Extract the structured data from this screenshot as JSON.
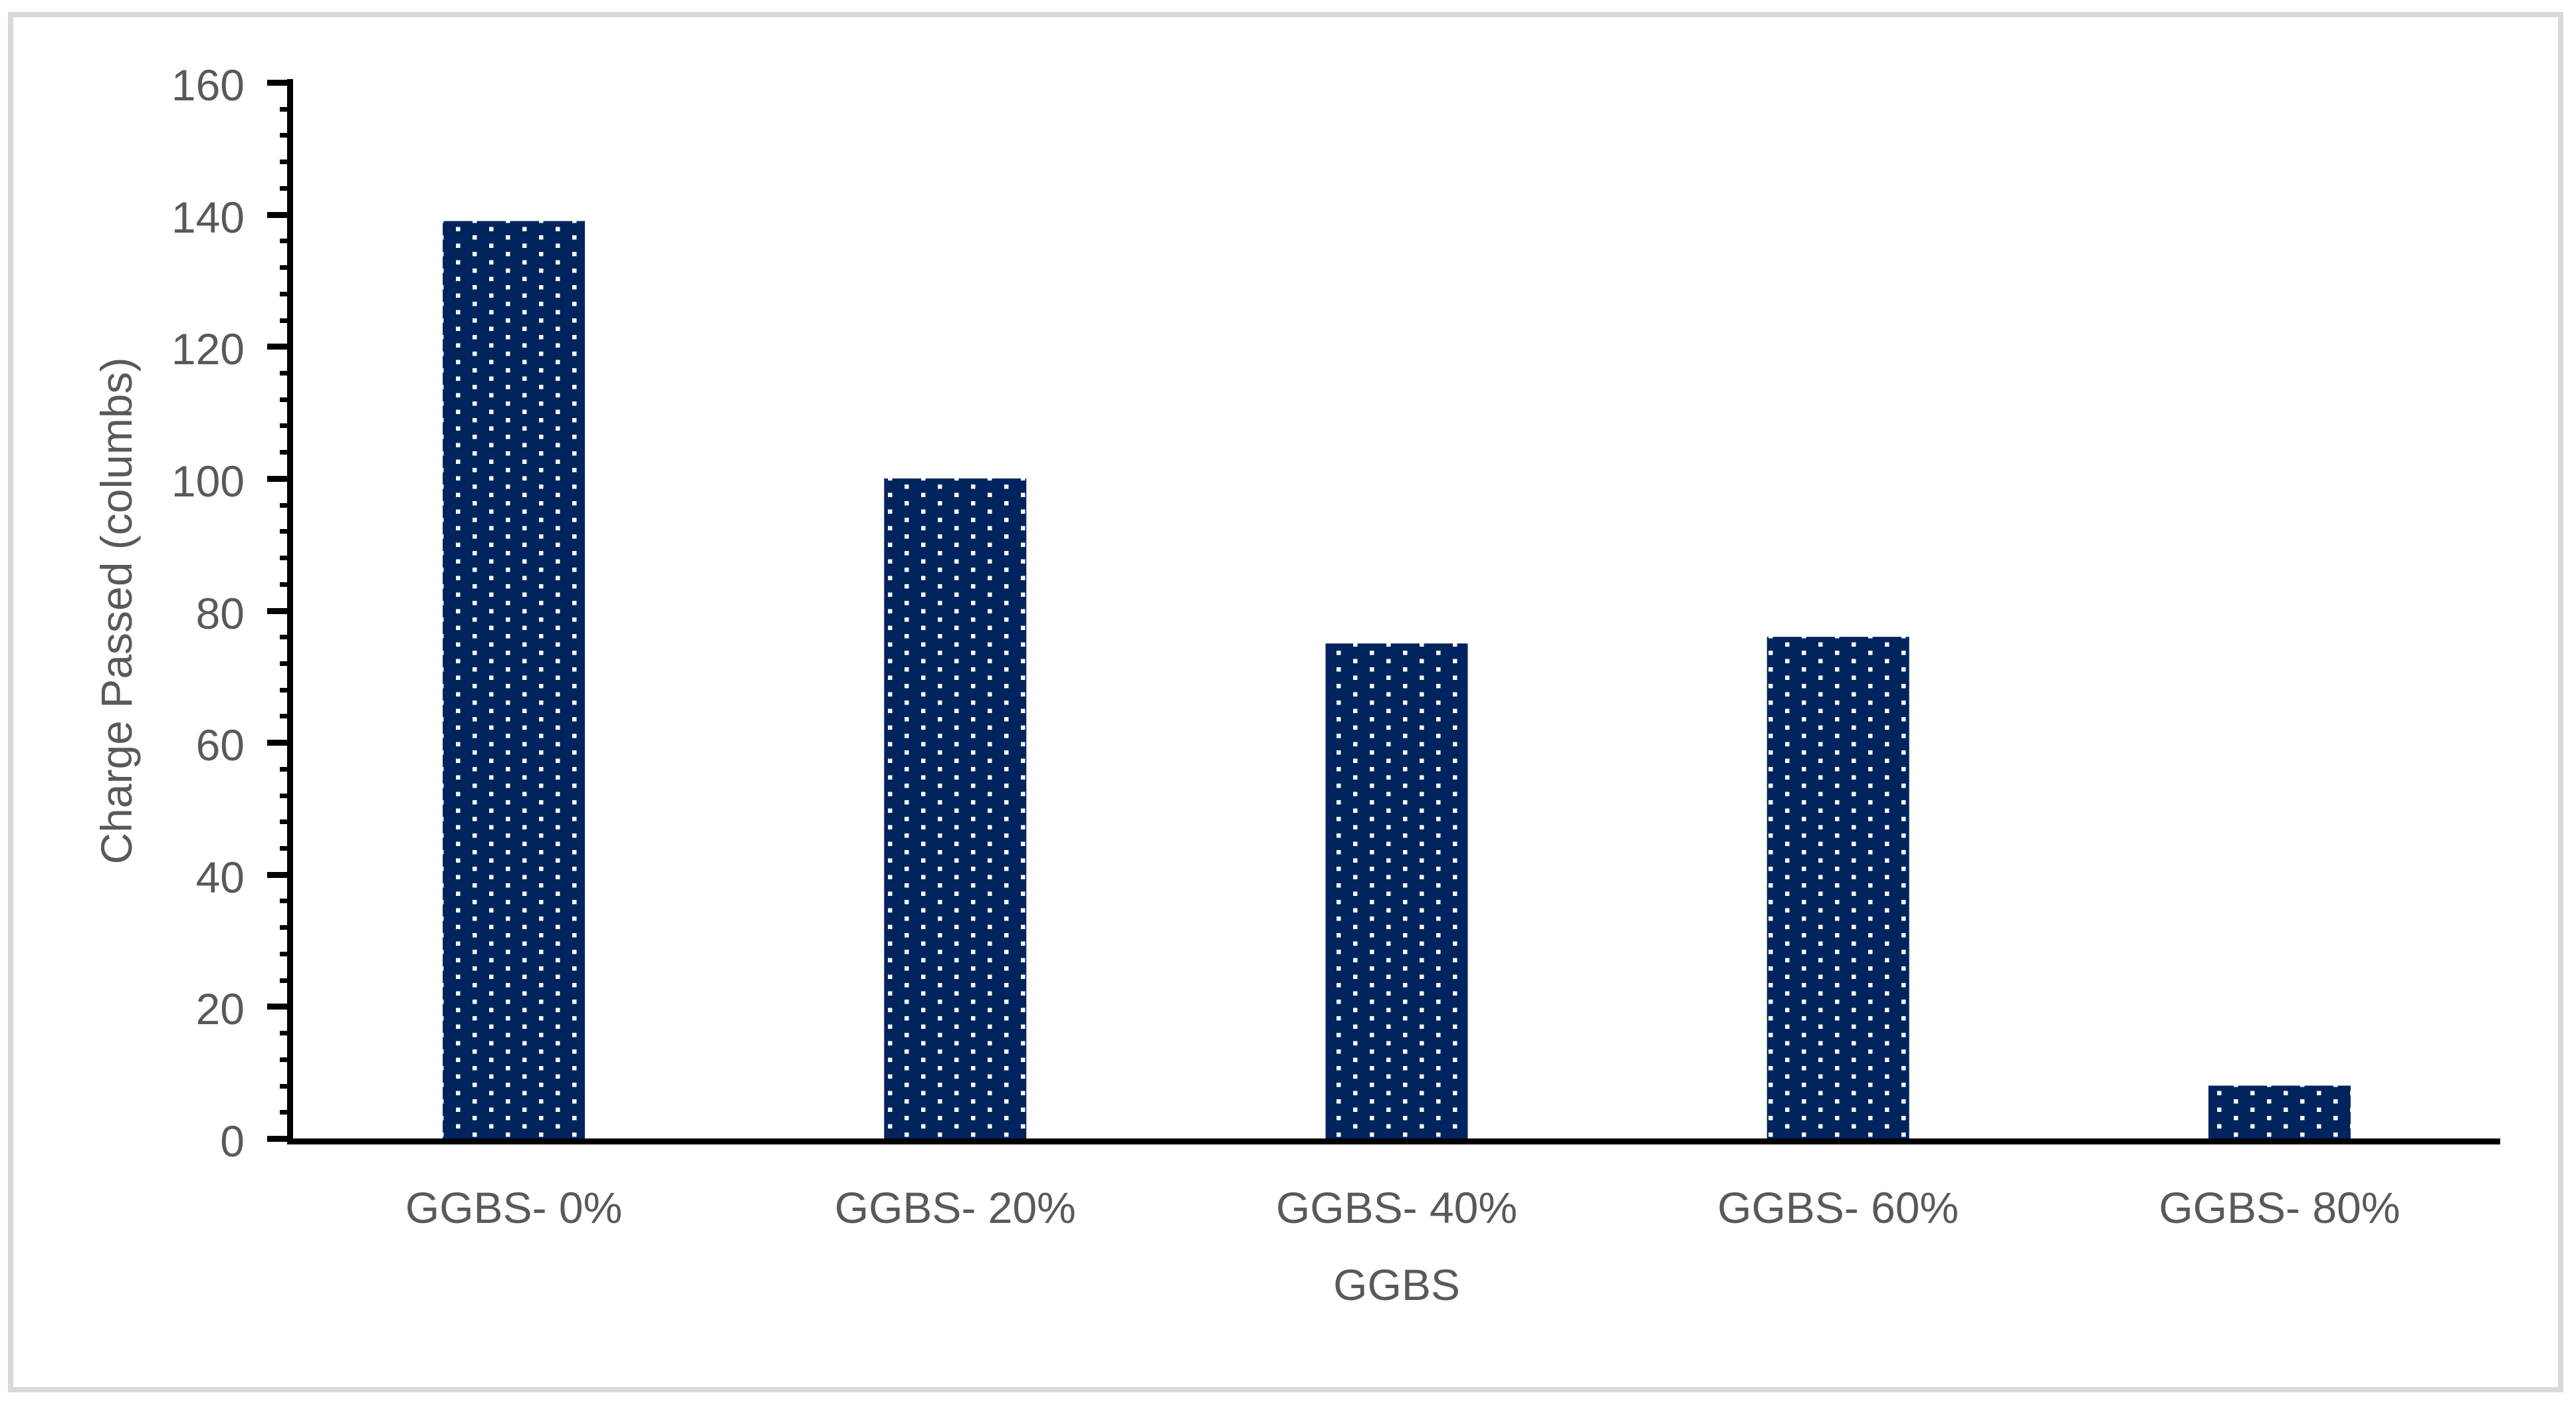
{
  "chart_data": {
    "type": "bar",
    "title": "",
    "categories": [
      "GGBS- 0%",
      "GGBS- 20%",
      "GGBS- 40%",
      "GGBS- 60%",
      "GGBS- 80%"
    ],
    "values": [
      139,
      100,
      75,
      76,
      8
    ],
    "xlabel": "GGBS",
    "ylabel": "Charge Passed (columbs)",
    "ylim": [
      0,
      160
    ],
    "y_major_unit": 20,
    "y_minor_unit": 4,
    "y_tick_labels": [
      "0",
      "20",
      "40",
      "60",
      "80",
      "100",
      "120",
      "140",
      "160"
    ],
    "grid": "off",
    "legend": "none",
    "bar_pattern": "white square dots on dark navy",
    "colors": {
      "bar_fill": "#01245E",
      "bar_dot": "#ffffff",
      "axis": "#000000",
      "text": "#595959",
      "frame_border": "#d9d9d9",
      "background": "#ffffff"
    }
  }
}
